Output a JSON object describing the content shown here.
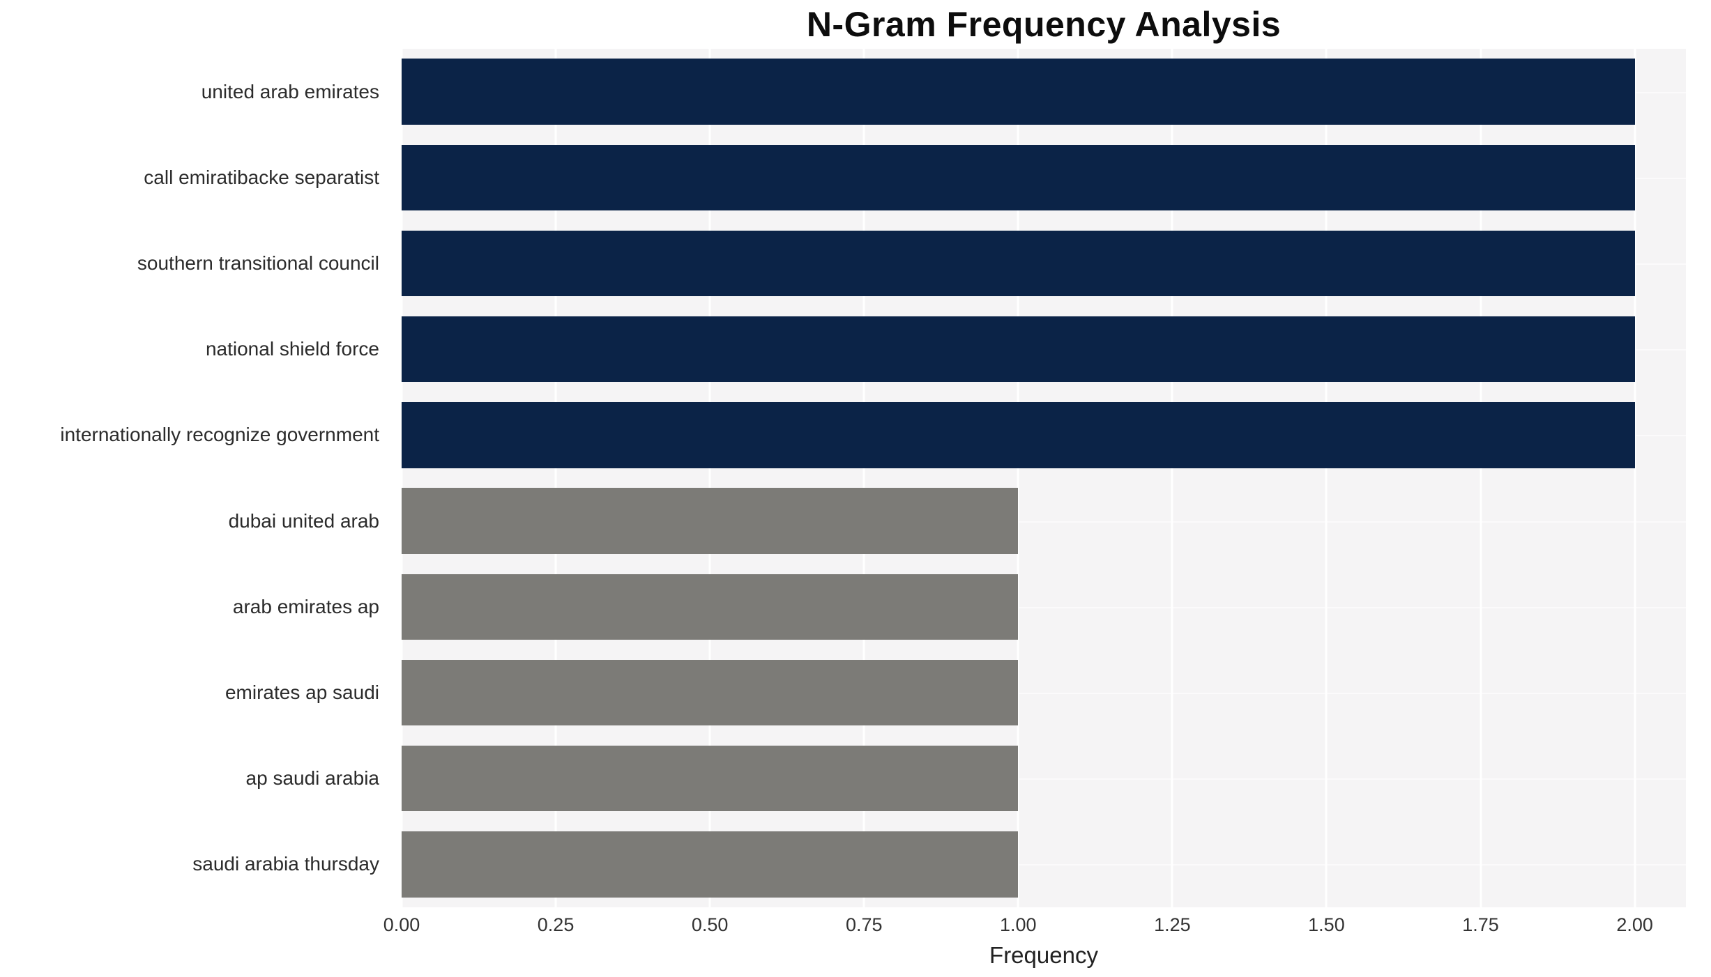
{
  "chart_data": {
    "type": "bar",
    "orientation": "horizontal",
    "title": "N-Gram Frequency Analysis",
    "xlabel": "Frequency",
    "ylabel": "",
    "legend": "none",
    "grid": true,
    "categories": [
      "united arab emirates",
      "call emiratibacke separatist",
      "southern transitional council",
      "national shield force",
      "internationally recognize government",
      "dubai united arab",
      "arab emirates ap",
      "emirates ap saudi",
      "ap saudi arabia",
      "saudi arabia thursday"
    ],
    "values": [
      2,
      2,
      2,
      2,
      2,
      1,
      1,
      1,
      1,
      1
    ],
    "bar_colors": [
      "#0b2347",
      "#0b2347",
      "#0b2347",
      "#0b2347",
      "#0b2347",
      "#7c7b77",
      "#7c7b77",
      "#7c7b77",
      "#7c7b77",
      "#7c7b77"
    ],
    "xlim": [
      0,
      2.083
    ],
    "xtick_values": [
      0,
      0.25,
      0.5,
      0.75,
      1,
      1.25,
      1.5,
      1.75,
      2
    ],
    "xtick_labels": [
      "0.00",
      "0.25",
      "0.50",
      "0.75",
      "1.00",
      "1.25",
      "1.50",
      "1.75",
      "2.00"
    ],
    "colors": {
      "plot_background": "#f5f4f5",
      "gridline": "#ffffff",
      "title_text": "#0d0d0d",
      "label_text": "#2b2b2b",
      "tick_text": "#333333"
    }
  }
}
